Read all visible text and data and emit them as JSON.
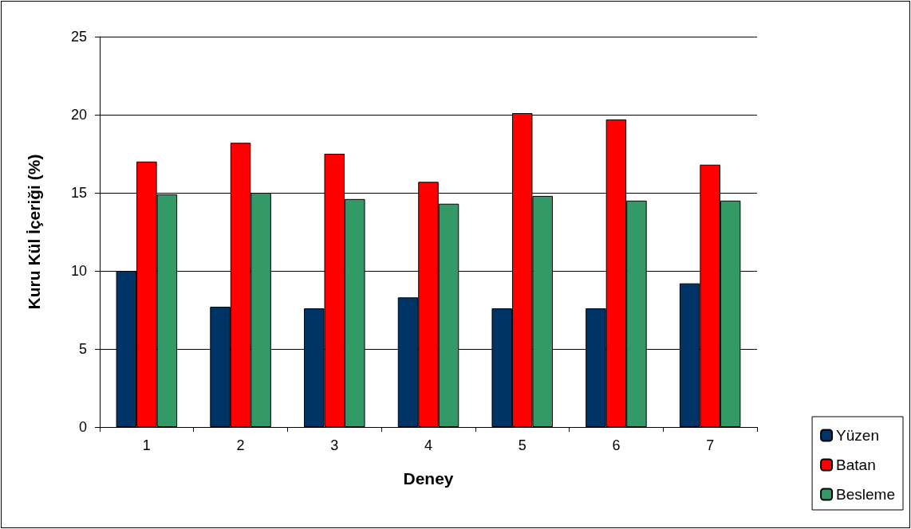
{
  "chart_data": {
    "type": "bar",
    "xlabel": "Deney",
    "ylabel": "Kuru Kül İçeriği (%)",
    "categories": [
      "1",
      "2",
      "3",
      "4",
      "5",
      "6",
      "7"
    ],
    "series": [
      {
        "name": "Yüzen",
        "color": "#003366",
        "values": [
          10.0,
          7.7,
          7.6,
          8.3,
          7.6,
          7.6,
          9.2
        ]
      },
      {
        "name": "Batan",
        "color": "#ff0000",
        "values": [
          17.0,
          18.2,
          17.5,
          15.7,
          20.1,
          19.7,
          16.8
        ]
      },
      {
        "name": "Besleme",
        "color": "#339966",
        "values": [
          14.9,
          15.0,
          14.6,
          14.3,
          14.8,
          14.5,
          14.5
        ]
      }
    ],
    "ylim": [
      0,
      25
    ],
    "yticks": [
      0,
      5,
      10,
      15,
      20,
      25
    ],
    "grid": "y",
    "legend": "bottom right"
  }
}
